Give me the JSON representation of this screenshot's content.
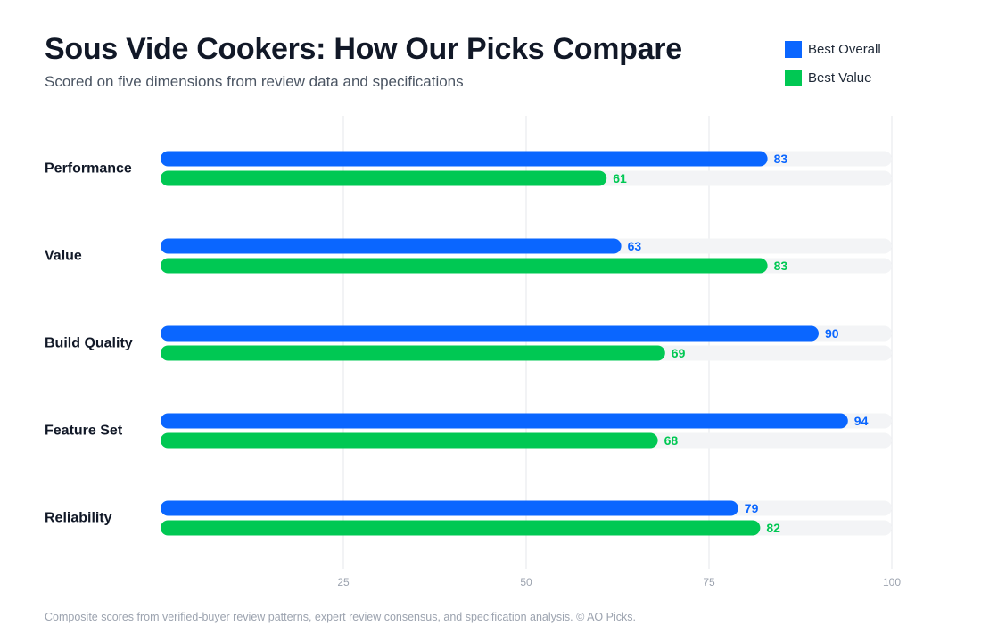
{
  "title": "Sous Vide Cookers: How Our Picks Compare",
  "subtitle": "Scored on five dimensions from review data and specifications",
  "footnote": "Composite scores from verified-buyer review patterns, expert review consensus, and specification analysis. © AO Picks.",
  "colors": {
    "best_overall": "#0a66ff",
    "best_value": "#00c853",
    "track": "#f3f4f6",
    "grid": "#e5e7eb"
  },
  "chart_data": {
    "type": "bar",
    "orientation": "horizontal",
    "title": "Sous Vide Cookers: How Our Picks Compare",
    "subtitle": "Scored on five dimensions from review data and specifications",
    "categories": [
      "Performance",
      "Value",
      "Build Quality",
      "Feature Set",
      "Reliability"
    ],
    "series": [
      {
        "name": "Best Overall",
        "values": [
          83,
          63,
          90,
          94,
          79
        ]
      },
      {
        "name": "Best Value",
        "values": [
          61,
          83,
          69,
          68,
          82
        ]
      }
    ],
    "xlim": [
      0,
      100
    ],
    "xticks": [
      25,
      50,
      75,
      100
    ],
    "grid": true,
    "legend_position": "top-right",
    "data_labels": true
  }
}
